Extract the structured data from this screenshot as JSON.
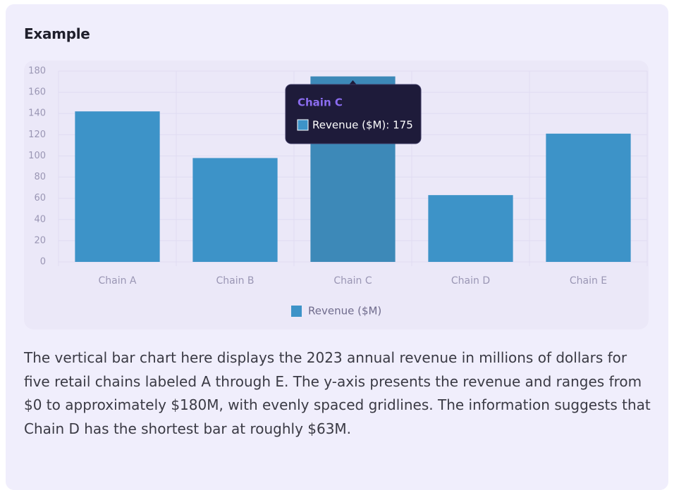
{
  "header": {
    "title": "Example"
  },
  "chart_data": {
    "type": "bar",
    "categories": [
      "Chain A",
      "Chain B",
      "Chain C",
      "Chain D",
      "Chain E"
    ],
    "series": [
      {
        "name": "Revenue ($M)",
        "color": "#3d93c8",
        "values": [
          142,
          98,
          175,
          63,
          121
        ]
      }
    ],
    "ylim": [
      0,
      180
    ],
    "yticks": [
      0,
      20,
      40,
      60,
      80,
      100,
      120,
      140,
      160,
      180
    ],
    "grid": true,
    "legend": "bottom",
    "tooltip": {
      "category_index": 2,
      "label": "Revenue ($M): 175"
    }
  },
  "description": "The vertical bar chart here displays the 2023 annual revenue in millions of dollars for five retail chains labeled A through E. The y-axis presents the revenue and ranges from $0 to approximately $180M, with evenly spaced gridlines. The information suggests that Chain D has the shortest bar at roughly $63M."
}
